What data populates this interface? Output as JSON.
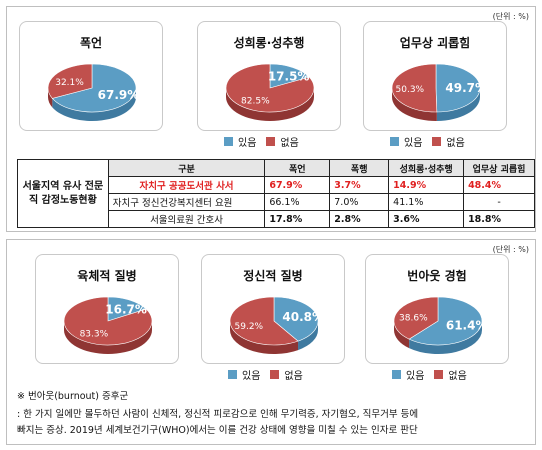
{
  "unit_label": "(단위 : %)",
  "legend": {
    "yes": "있음",
    "no": "없음",
    "yes_color": "#5b9dc4",
    "no_color": "#c0504d"
  },
  "chart_data": [
    {
      "type": "pie",
      "title": "폭언",
      "series": [
        {
          "name": "있음",
          "value": 67.9,
          "label": "67.9%"
        },
        {
          "name": "없음",
          "value": 32.1,
          "label": "32.1%"
        }
      ]
    },
    {
      "type": "pie",
      "title": "성희롱·성추행",
      "series": [
        {
          "name": "있음",
          "value": 17.5,
          "label": "17.5%"
        },
        {
          "name": "없음",
          "value": 82.5,
          "label": "82.5%"
        }
      ]
    },
    {
      "type": "pie",
      "title": "업무상 괴롭힘",
      "series": [
        {
          "name": "있음",
          "value": 49.7,
          "label": "49.7%"
        },
        {
          "name": "없음",
          "value": 50.3,
          "label": "50.3%"
        }
      ]
    },
    {
      "type": "pie",
      "title": "육체적 질병",
      "series": [
        {
          "name": "있음",
          "value": 16.7,
          "label": "16.7%"
        },
        {
          "name": "없음",
          "value": 83.3,
          "label": "83.3%"
        }
      ]
    },
    {
      "type": "pie",
      "title": "정신적 질병",
      "series": [
        {
          "name": "있음",
          "value": 40.8,
          "label": "40.8%"
        },
        {
          "name": "없음",
          "value": 59.2,
          "label": "59.2%"
        }
      ]
    },
    {
      "type": "pie",
      "title": "번아웃 경험",
      "series": [
        {
          "name": "있음",
          "value": 61.4,
          "label": "61.4%"
        },
        {
          "name": "없음",
          "value": 38.6,
          "label": "38.6%"
        }
      ]
    },
    {
      "type": "table",
      "row_header": "서울지역 유사 전문직 감정노동현황",
      "columns": [
        "구분",
        "폭언",
        "폭행",
        "성희롱·성추행",
        "업무상 괴롭힘"
      ],
      "rows": [
        [
          "자치구 공공도서관 사서",
          "67.9%",
          "3.7%",
          "14.9%",
          "48.4%"
        ],
        [
          "자치구 정신건강복지센터 요원",
          "66.1%",
          "7.0%",
          "41.1%",
          "-"
        ],
        [
          "서울의료원 간호사",
          "17.8%",
          "2.8%",
          "3.6%",
          "18.8%"
        ]
      ]
    }
  ],
  "note": {
    "title": "※ 번아웃(burnout) 증후군",
    "line1": ": 한 가지 일에만 몰두하던 사람이 신체적, 정신적 피로감으로 인해 무기력증, 자기혐오, 직무거부 등에",
    "line2": "빠지는 증상. 2019년 세계보건기구(WHO)에서는 이를 건강 상태에 영향을 미칠 수 있는 인자로 판단"
  }
}
